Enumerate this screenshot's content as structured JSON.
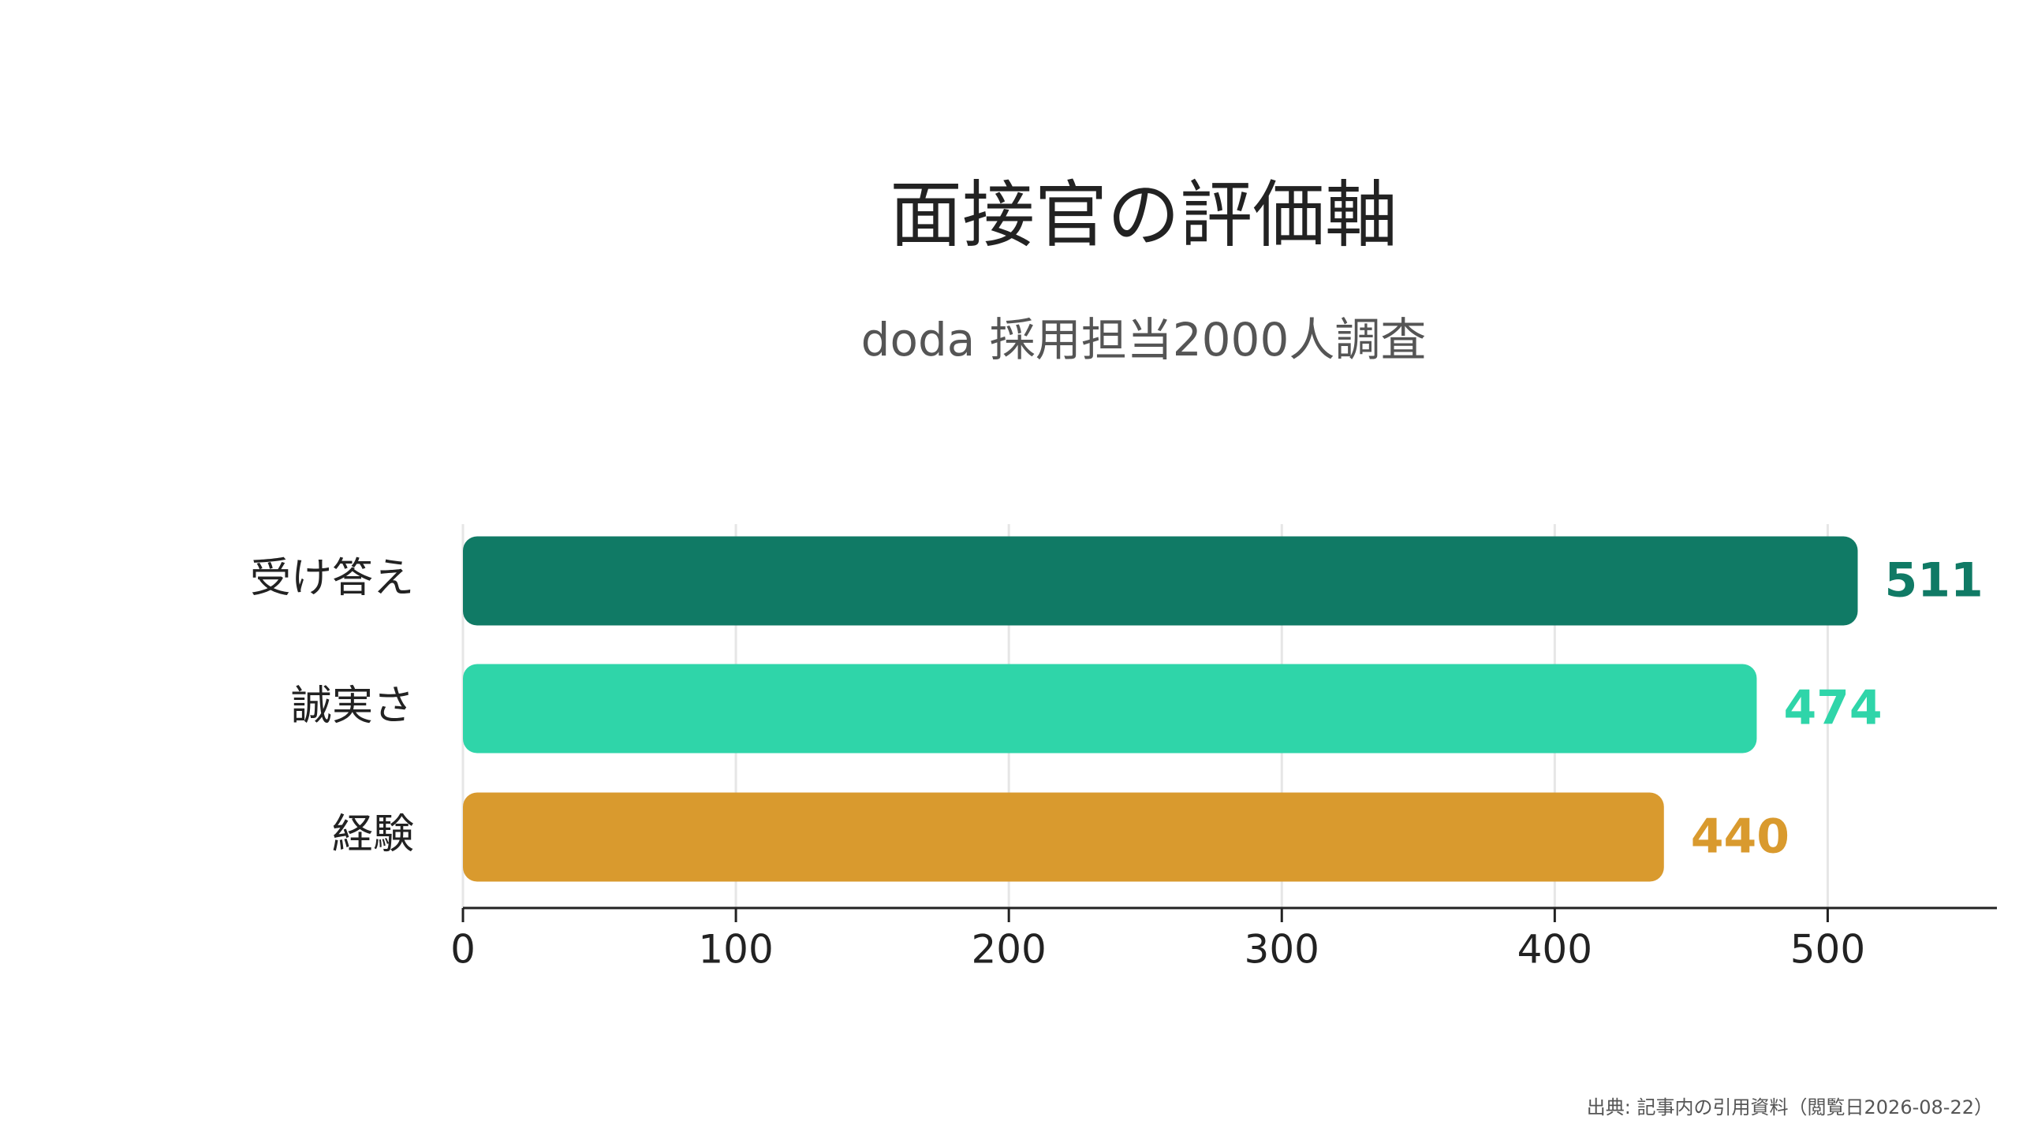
{
  "chart_data": {
    "type": "bar",
    "orientation": "horizontal",
    "title": "面接官の評価軸",
    "subtitle": "doda 採用担当2000人調査",
    "categories": [
      "受け答え",
      "誠実さ",
      "経験"
    ],
    "values": [
      511,
      474,
      440
    ],
    "colors": [
      "#107a65",
      "#2fd5a9",
      "#d99a2e"
    ],
    "xlim": [
      0,
      562
    ],
    "xticks": [
      0,
      100,
      200,
      300,
      400,
      500
    ],
    "grid": true,
    "source": "出典: 記事内の引用資料（閲覧日2026-08-22）"
  }
}
